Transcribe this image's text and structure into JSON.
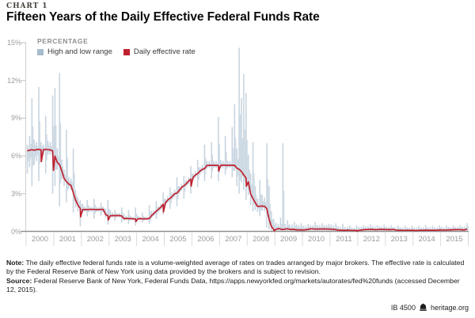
{
  "page": {
    "kicker": "CHART 1",
    "title": "Fifteen Years of the Daily Effective Federal Funds Rate",
    "note_label": "Note:",
    "note_text": " The daily effective federal funds rate is a volume-weighted average of rates on trades arranged by major brokers. The effective rate is calculated by the Federal Reserve Bank of New York using data provided by the brokers and is subject to revision.",
    "source_label": "Source:",
    "source_text": " Federal Reserve Bank of New York, Federal Funds Data, https://apps.newyorkfed.org/markets/autorates/fed%20funds (accessed December 12, 2015).",
    "footer": {
      "doc_id": "IB 4500",
      "bell_icon": "liberty-bell-icon",
      "site": "heritage.org"
    }
  },
  "chart_data": {
    "type": "line",
    "title": "Fifteen Years of the Daily Effective Federal Funds Rate",
    "axis_label": "PERCENTAGE",
    "legend": [
      {
        "label": "High and low range",
        "color": "#a7bccd",
        "kind": "range"
      },
      {
        "label": "Daily effective rate",
        "color": "#bf202e",
        "kind": "line"
      }
    ],
    "xlim": [
      2000,
      2016
    ],
    "ylim": [
      0,
      15
    ],
    "grid": false,
    "legend_position": "top-left",
    "x_ticks": [
      2000,
      2001,
      2002,
      2003,
      2004,
      2005,
      2006,
      2007,
      2008,
      2009,
      2010,
      2011,
      2012,
      2013,
      2014,
      2015
    ],
    "y_ticks": [
      0,
      3,
      6,
      9,
      12,
      15
    ],
    "y_tick_suffix": "%",
    "series": {
      "start_year": 2000,
      "interval": "monthly",
      "rate": [
        6.4,
        6.45,
        6.5,
        6.45,
        6.5,
        6.52,
        6.48,
        6.5,
        6.52,
        6.5,
        6.48,
        6.4,
        5.98,
        5.49,
        5.31,
        4.8,
        4.21,
        3.97,
        3.77,
        3.65,
        3.07,
        2.49,
        2.09,
        1.82,
        1.73,
        1.74,
        1.73,
        1.75,
        1.75,
        1.75,
        1.73,
        1.74,
        1.75,
        1.75,
        1.34,
        1.24,
        1.24,
        1.26,
        1.25,
        1.26,
        1.26,
        1.22,
        1.01,
        1.03,
        1.01,
        1.01,
        1.0,
        0.98,
        1.0,
        1.01,
        1.0,
        1.0,
        1.0,
        1.03,
        1.26,
        1.43,
        1.61,
        1.76,
        1.93,
        2.16,
        2.28,
        2.5,
        2.63,
        2.79,
        3.0,
        3.04,
        3.26,
        3.5,
        3.62,
        3.78,
        4.0,
        4.16,
        4.29,
        4.49,
        4.59,
        4.79,
        4.94,
        4.99,
        5.24,
        5.25,
        5.25,
        5.25,
        5.25,
        5.24,
        5.25,
        5.26,
        5.26,
        5.25,
        5.25,
        5.25,
        5.26,
        5.02,
        4.94,
        4.76,
        4.49,
        4.24,
        3.94,
        2.98,
        2.61,
        2.28,
        1.98,
        2.0,
        2.01,
        2.0,
        1.81,
        0.97,
        0.39,
        0.16,
        0.15,
        0.22,
        0.18,
        0.15,
        0.18,
        0.21,
        0.16,
        0.16,
        0.15,
        0.12,
        0.12,
        0.12,
        0.11,
        0.13,
        0.16,
        0.2,
        0.2,
        0.18,
        0.18,
        0.19,
        0.19,
        0.19,
        0.19,
        0.18,
        0.17,
        0.16,
        0.14,
        0.1,
        0.09,
        0.09,
        0.07,
        0.1,
        0.08,
        0.07,
        0.08,
        0.07,
        0.08,
        0.1,
        0.13,
        0.14,
        0.16,
        0.16,
        0.16,
        0.13,
        0.14,
        0.16,
        0.16,
        0.16,
        0.14,
        0.15,
        0.14,
        0.15,
        0.11,
        0.09,
        0.09,
        0.08,
        0.08,
        0.09,
        0.08,
        0.09,
        0.07,
        0.07,
        0.08,
        0.09,
        0.09,
        0.1,
        0.09,
        0.09,
        0.09,
        0.09,
        0.09,
        0.12,
        0.11,
        0.11,
        0.11,
        0.12,
        0.12,
        0.13,
        0.13,
        0.14,
        0.14,
        0.12,
        0.12,
        0.2
      ],
      "high": [
        6.9,
        7.6,
        10.6,
        7.3,
        7.1,
        11.5,
        7.1,
        6.9,
        9.2,
        7.2,
        7.1,
        10.8,
        11.4,
        6.6,
        12.6,
        5.7,
        4.9,
        8.1,
        4.3,
        4.2,
        6.6,
        3.3,
        2.7,
        2.5,
        2.2,
        2.0,
        2.5,
        2.0,
        1.95,
        2.6,
        1.95,
        1.95,
        2.3,
        1.95,
        1.8,
        2.5,
        1.7,
        1.5,
        1.7,
        1.45,
        1.45,
        1.9,
        1.35,
        1.25,
        1.7,
        1.2,
        1.15,
        1.9,
        1.25,
        1.15,
        1.5,
        1.15,
        1.15,
        2.1,
        1.65,
        1.65,
        2.4,
        2.0,
        2.2,
        3.1,
        2.6,
        2.8,
        3.5,
        3.1,
        3.3,
        4.3,
        3.6,
        3.8,
        4.4,
        4.1,
        4.3,
        5.2,
        4.6,
        4.8,
        5.7,
        5.1,
        5.3,
        6.9,
        5.6,
        5.6,
        7.1,
        5.6,
        5.6,
        9.1,
        5.7,
        5.6,
        7.6,
        5.6,
        5.6,
        8.3,
        10.1,
        6.6,
        14.6,
        10.6,
        12.5,
        11.0,
        6.1,
        4.6,
        7.1,
        3.6,
        2.6,
        4.1,
        2.9,
        2.7,
        7.0,
        3.6,
        1.6,
        1.0,
        0.7,
        0.6,
        1.1,
        7.0,
        0.6,
        0.9,
        0.55,
        0.55,
        0.75,
        0.55,
        0.5,
        0.65,
        0.45,
        0.45,
        0.6,
        0.5,
        0.5,
        0.75,
        0.5,
        0.5,
        0.65,
        0.5,
        0.5,
        0.6,
        0.55,
        0.45,
        0.65,
        0.4,
        0.35,
        0.6,
        0.32,
        0.38,
        0.5,
        0.3,
        0.3,
        0.5,
        0.38,
        0.36,
        0.5,
        0.4,
        0.4,
        0.55,
        0.4,
        0.36,
        0.5,
        0.4,
        0.4,
        0.55,
        0.38,
        0.36,
        0.5,
        0.36,
        0.32,
        0.5,
        0.32,
        0.3,
        0.45,
        0.32,
        0.3,
        0.45,
        0.32,
        0.3,
        0.45,
        0.32,
        0.32,
        0.5,
        0.32,
        0.32,
        0.45,
        0.32,
        0.32,
        0.5,
        0.35,
        0.32,
        0.48,
        0.35,
        0.33,
        0.5,
        0.36,
        0.38,
        0.5,
        0.38,
        0.38,
        0.65
      ],
      "low": [
        4.6,
        5.1,
        3.6,
        5.3,
        5.6,
        4.0,
        5.9,
        6.1,
        4.6,
        6.1,
        6.1,
        3.0,
        3.6,
        4.9,
        2.0,
        4.1,
        3.6,
        2.3,
        3.4,
        3.3,
        1.5,
        1.9,
        1.6,
        0.4,
        1.45,
        1.55,
        1.2,
        1.55,
        1.55,
        1.0,
        1.55,
        1.55,
        1.25,
        1.55,
        1.1,
        0.55,
        1.05,
        1.12,
        0.85,
        1.12,
        1.12,
        0.7,
        0.85,
        0.9,
        0.6,
        0.9,
        0.88,
        0.45,
        0.9,
        0.9,
        0.7,
        0.9,
        0.9,
        0.6,
        1.05,
        1.25,
        1.0,
        1.55,
        1.7,
        1.3,
        2.05,
        2.25,
        1.8,
        2.55,
        2.75,
        2.0,
        3.0,
        3.25,
        2.6,
        3.55,
        3.75,
        3.0,
        4.05,
        4.25,
        3.5,
        4.55,
        4.7,
        4.0,
        5.0,
        5.05,
        4.2,
        5.05,
        5.05,
        4.0,
        5.05,
        5.05,
        4.5,
        5.05,
        5.05,
        4.3,
        4.8,
        3.6,
        3.0,
        3.9,
        3.3,
        2.5,
        2.9,
        2.1,
        1.6,
        1.7,
        1.55,
        1.2,
        1.65,
        1.6,
        0.3,
        0.15,
        0.08,
        0.03,
        0.05,
        0.05,
        0.02,
        0.05,
        0.05,
        0.02,
        0.05,
        0.05,
        0.02,
        0.05,
        0.05,
        0.01,
        0.05,
        0.05,
        0.02,
        0.05,
        0.05,
        0.02,
        0.05,
        0.05,
        0.02,
        0.05,
        0.05,
        0.01,
        0.05,
        0.05,
        0.02,
        0.05,
        0.05,
        0.02,
        0.05,
        0.05,
        0.02,
        0.05,
        0.05,
        0.01,
        0.05,
        0.05,
        0.02,
        0.05,
        0.05,
        0.02,
        0.05,
        0.05,
        0.02,
        0.05,
        0.05,
        0.01,
        0.05,
        0.05,
        0.02,
        0.05,
        0.05,
        0.02,
        0.05,
        0.05,
        0.02,
        0.05,
        0.05,
        0.01,
        0.05,
        0.05,
        0.02,
        0.05,
        0.05,
        0.02,
        0.05,
        0.05,
        0.02,
        0.05,
        0.05,
        0.01,
        0.05,
        0.05,
        0.02,
        0.05,
        0.05,
        0.02,
        0.05,
        0.05,
        0.02,
        0.05,
        0.05,
        0.01
      ],
      "rate_spikes": [
        [
          2000.55,
          5.55
        ],
        [
          2000.99,
          4.85
        ],
        [
          2001.97,
          1.15
        ],
        [
          2002.97,
          0.9
        ],
        [
          2003.97,
          0.78
        ],
        [
          2004.97,
          1.55
        ],
        [
          2005.97,
          3.6
        ],
        [
          2006.97,
          4.8
        ],
        [
          2007.97,
          3.6
        ],
        [
          2008.97,
          0.05
        ],
        [
          2011.97,
          0.02
        ]
      ]
    }
  },
  "style": {
    "axis_line_color": "#8f8f8f",
    "axis_light_color": "#cfcfcf",
    "tick_label_color": "#9b9b9b"
  }
}
